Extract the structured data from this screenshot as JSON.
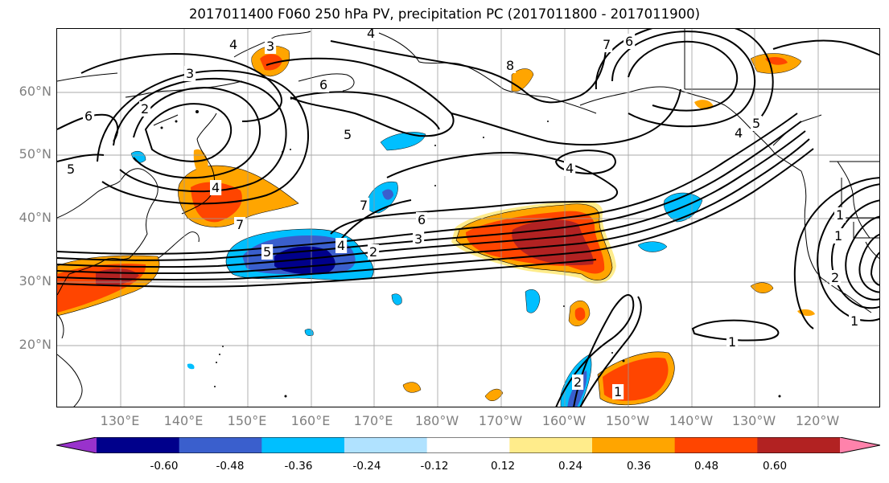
{
  "title": "2017011400 F060 250 hPa PV, precipitation PC (2017011800 - 2017011900)",
  "lat_labels": [
    "60°N",
    "50°N",
    "40°N",
    "30°N",
    "20°N"
  ],
  "lon_labels": [
    "130°E",
    "140°E",
    "150°E",
    "160°E",
    "170°E",
    "180°W",
    "170°W",
    "160°W",
    "150°W",
    "140°W",
    "130°W",
    "120°W"
  ],
  "contour_labels": [
    "3",
    "2",
    "6",
    "5",
    "4",
    "4",
    "7",
    "8",
    "7",
    "6",
    "4",
    "3",
    "6",
    "5",
    "4",
    "5",
    "4",
    "7",
    "6",
    "3",
    "2",
    "4",
    "5",
    "1",
    "2",
    "1",
    "1",
    "1",
    "2",
    "1"
  ],
  "colorbar": {
    "ticks": [
      "-0.60",
      "-0.48",
      "-0.36",
      "-0.24",
      "-0.12",
      "0.12",
      "0.24",
      "0.36",
      "0.48",
      "0.60"
    ],
    "colors": [
      "#9932cc",
      "#00008b",
      "#3a5fcd",
      "#00bfff",
      "#b0e2ff",
      "#ffffff",
      "#ffec8b",
      "#ffa500",
      "#ff4500",
      "#b22222",
      "#ff82ab"
    ]
  }
}
